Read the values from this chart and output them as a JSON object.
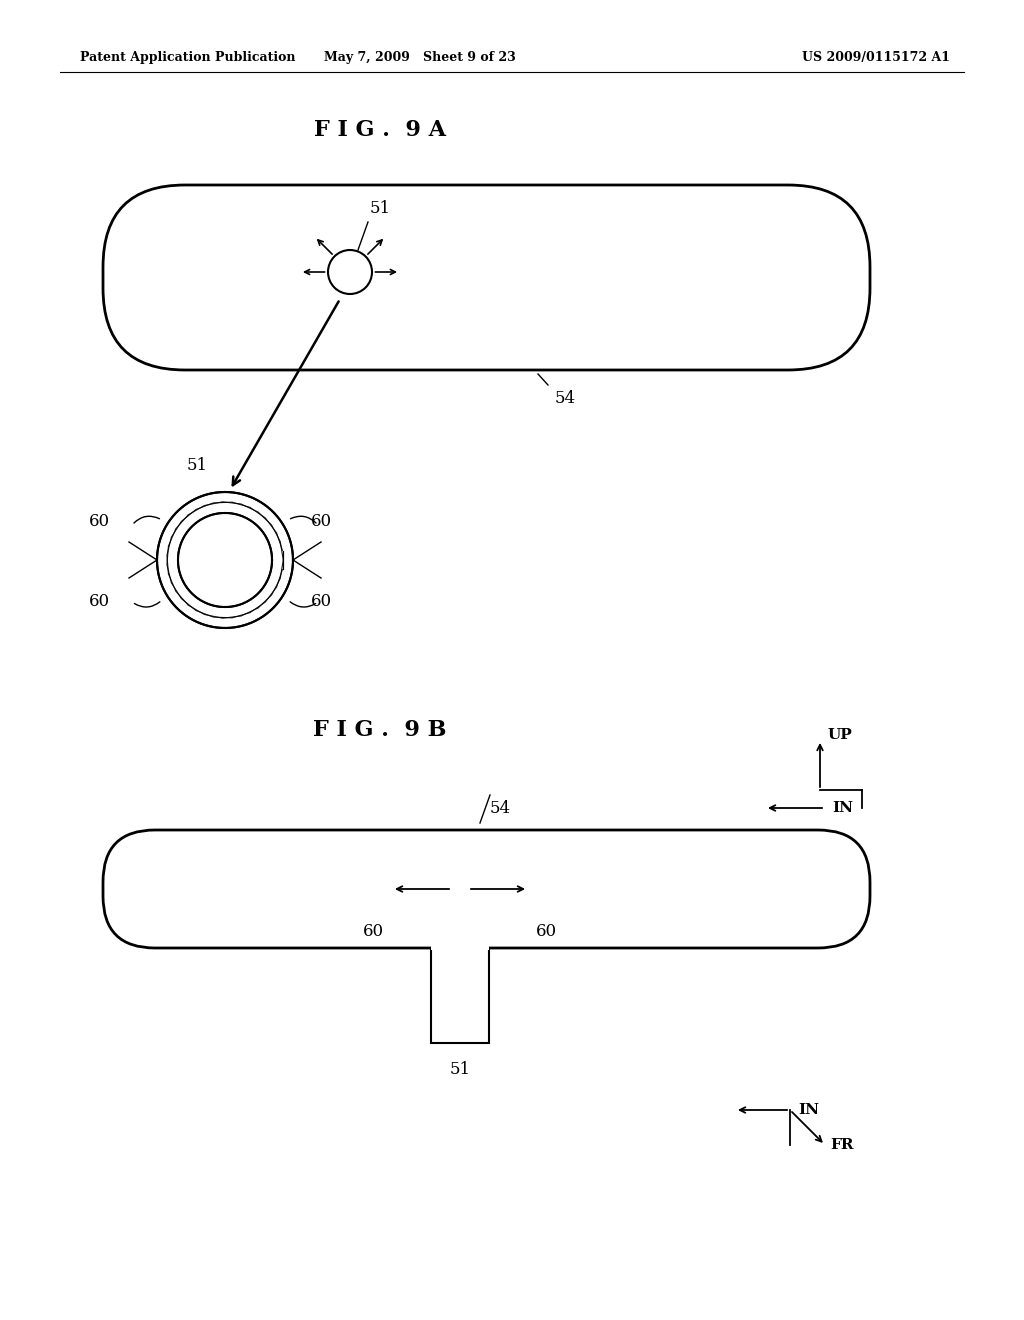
{
  "bg_color": "#ffffff",
  "line_color": "#000000",
  "header_left": "Patent Application Publication",
  "header_mid": "May 7, 2009   Sheet 9 of 23",
  "header_right": "US 2009/0115172 A1",
  "fig9a_title": "F I G .  9 A",
  "fig9b_title": "F I G .  9 B"
}
